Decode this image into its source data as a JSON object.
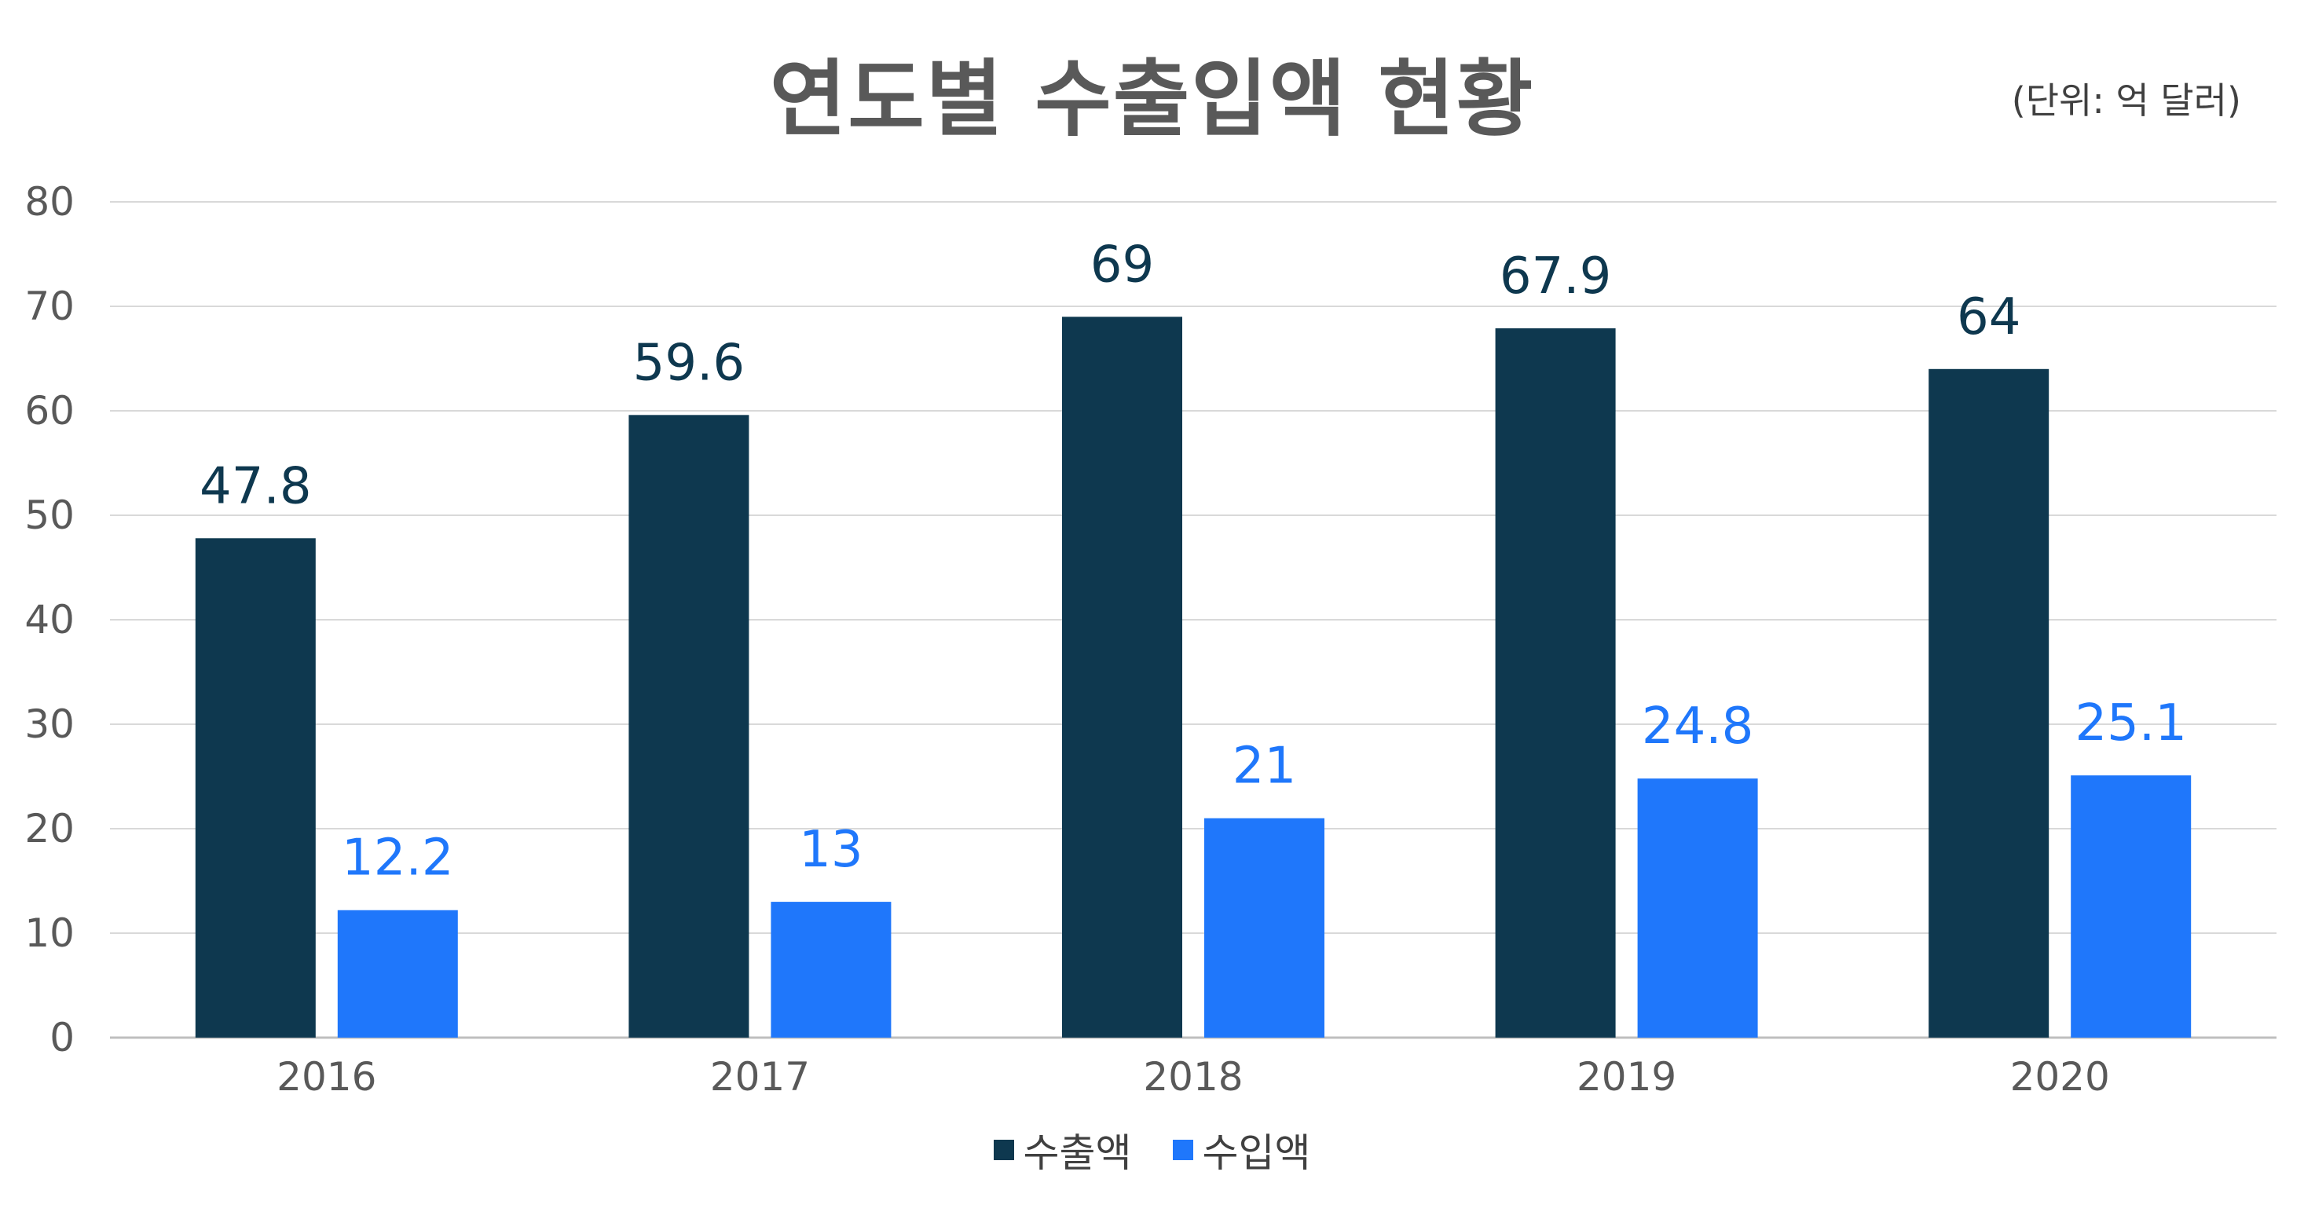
{
  "chart_data": {
    "type": "bar",
    "title": "연도별 수출입액 현황",
    "unit_note": "(단위: 억 달러)",
    "categories": [
      "2016",
      "2017",
      "2018",
      "2019",
      "2020"
    ],
    "series": [
      {
        "name": "수출액",
        "color": "#0e384f",
        "values": [
          47.8,
          59.6,
          69,
          67.9,
          64
        ],
        "labels": [
          "47.8",
          "59.6",
          "69",
          "67.9",
          "64"
        ]
      },
      {
        "name": "수입액",
        "color": "#1f77fb",
        "values": [
          12.2,
          13,
          21,
          24.8,
          25.1
        ],
        "labels": [
          "12.2",
          "13",
          "21",
          "24.8",
          "25.1"
        ]
      }
    ],
    "ylim": [
      0,
      80
    ],
    "yticks": [
      0,
      10,
      20,
      30,
      40,
      50,
      60,
      70,
      80
    ],
    "xlabel": "",
    "ylabel": "",
    "grid": true,
    "legend_position": "bottom"
  }
}
